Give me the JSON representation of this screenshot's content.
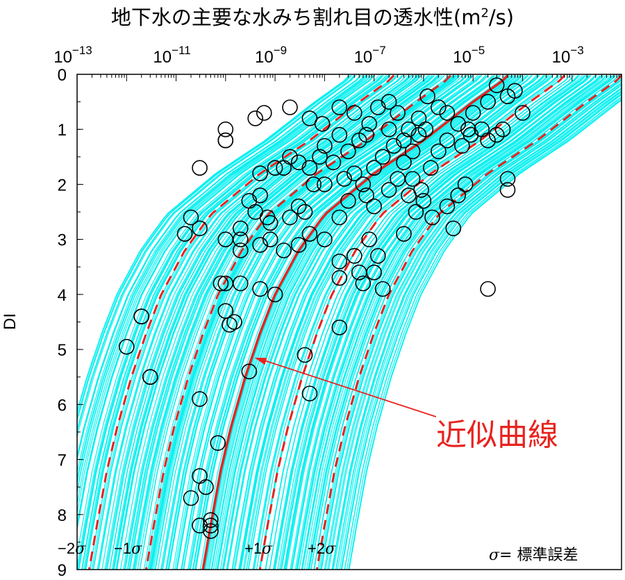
{
  "chart_data": {
    "type": "scatter",
    "title_main": "地下水の主要な水みち割れ目の透水性(m",
    "title_sup": "2",
    "title_end": "/s)",
    "ylabel": "DI",
    "xscale": "log",
    "xlim": [
      1e-13,
      0.01
    ],
    "ylim": [
      0,
      9
    ],
    "y_inverted": true,
    "x_ticks": [
      {
        "base": "10",
        "exp": "−13",
        "value": 1e-13
      },
      {
        "base": "10",
        "exp": "−11",
        "value": 1e-11
      },
      {
        "base": "10",
        "exp": "−9",
        "value": 1e-09
      },
      {
        "base": "10",
        "exp": "−7",
        "value": 1e-07
      },
      {
        "base": "10",
        "exp": "−5",
        "value": 1e-05
      },
      {
        "base": "10",
        "exp": "−3",
        "value": 0.001
      }
    ],
    "y_ticks": [
      "0",
      "1",
      "2",
      "3",
      "4",
      "5",
      "6",
      "7",
      "8",
      "9"
    ],
    "fit_curve": {
      "name": "近似曲線",
      "color": "#e8231f",
      "points": [
        [
          5e-05,
          0.05
        ],
        [
          1e-05,
          0.5
        ],
        [
          1e-06,
          1.2
        ],
        [
          1e-07,
          1.8
        ],
        [
          1e-08,
          2.55
        ],
        [
          3e-09,
          3.2
        ],
        [
          1e-09,
          4.0
        ],
        [
          5e-10,
          4.7
        ],
        [
          2.5e-10,
          5.5
        ],
        [
          1.3e-10,
          6.4
        ],
        [
          8e-11,
          7.2
        ],
        [
          5e-11,
          8.2
        ],
        [
          3.5e-11,
          9.0
        ]
      ]
    },
    "sigma_curves": [
      {
        "label": "−2σ",
        "shift": -2
      },
      {
        "label": "−1σ",
        "shift": -1
      },
      {
        "label": "+1σ",
        "shift": 1
      },
      {
        "label": "+2σ",
        "shift": 2
      }
    ],
    "sigma_decades": 1.15,
    "band_color": "#00f0f0",
    "marker_color": "#000000",
    "points": [
      [
        3e-11,
        1.7
      ],
      [
        6e-10,
        0.7
      ],
      [
        4e-10,
        0.8
      ],
      [
        1e-10,
        1.0
      ],
      [
        1e-10,
        1.2
      ],
      [
        2e-09,
        0.6
      ],
      [
        5e-09,
        0.8
      ],
      [
        8e-09,
        1.5
      ],
      [
        2e-08,
        1.1
      ],
      [
        2e-08,
        0.6
      ],
      [
        5e-08,
        1.2
      ],
      [
        8e-08,
        0.9
      ],
      [
        1.2e-07,
        0.6
      ],
      [
        2e-07,
        0.5
      ],
      [
        3e-07,
        0.7
      ],
      [
        5e-07,
        1.0
      ],
      [
        8e-07,
        0.8
      ],
      [
        1.2e-06,
        0.4
      ],
      [
        2e-06,
        0.6
      ],
      [
        3e-06,
        0.7
      ],
      [
        5e-06,
        0.9
      ],
      [
        8e-06,
        1.0
      ],
      [
        1e-05,
        0.7
      ],
      [
        2e-05,
        0.5
      ],
      [
        3e-05,
        0.2
      ],
      [
        5e-05,
        0.4
      ],
      [
        7e-05,
        0.3
      ],
      [
        0.0001,
        0.7
      ],
      [
        4e-05,
        1.0
      ],
      [
        2e-05,
        1.2
      ],
      [
        1e-08,
        1.3
      ],
      [
        1.5e-08,
        1.6
      ],
      [
        3e-08,
        1.4
      ],
      [
        4e-08,
        1.8
      ],
      [
        6e-08,
        2.0
      ],
      [
        1e-07,
        1.7
      ],
      [
        1.5e-07,
        1.5
      ],
      [
        2.5e-07,
        1.3
      ],
      [
        4e-07,
        1.6
      ],
      [
        6e-07,
        1.9
      ],
      [
        9e-07,
        2.1
      ],
      [
        1.4e-06,
        1.7
      ],
      [
        2e-06,
        1.4
      ],
      [
        3e-06,
        1.2
      ],
      [
        6e-06,
        1.3
      ],
      [
        9e-06,
        1.1
      ],
      [
        1.5e-05,
        1.0
      ],
      [
        3e-05,
        1.1
      ],
      [
        1e-06,
        2.3
      ],
      [
        1.5e-06,
        2.6
      ],
      [
        7e-08,
        2.2
      ],
      [
        1e-07,
        2.4
      ],
      [
        5e-07,
        2.2
      ],
      [
        7e-07,
        2.5
      ],
      [
        4e-06,
        2.8
      ],
      [
        5e-05,
        1.9
      ],
      [
        5e-05,
        2.1
      ],
      [
        3e-08,
        2.3
      ],
      [
        2e-08,
        2.6
      ],
      [
        2e-09,
        1.5
      ],
      [
        3e-09,
        1.6
      ],
      [
        5e-09,
        1.7
      ],
      [
        1e-09,
        1.7
      ],
      [
        5e-10,
        1.8
      ],
      [
        1e-10,
        1.2
      ],
      [
        2e-11,
        2.6
      ],
      [
        1.5e-11,
        2.9
      ],
      [
        3e-11,
        2.8
      ],
      [
        3e-10,
        2.3
      ],
      [
        4e-10,
        2.5
      ],
      [
        5e-10,
        2.2
      ],
      [
        7e-10,
        2.6
      ],
      [
        8e-10,
        2.7
      ],
      [
        2e-10,
        2.8
      ],
      [
        2e-10,
        3.0
      ],
      [
        2e-10,
        3.2
      ],
      [
        1e-10,
        3.0
      ],
      [
        5e-10,
        3.1
      ],
      [
        8e-10,
        3.0
      ],
      [
        2e-09,
        2.6
      ],
      [
        3e-09,
        2.4
      ],
      [
        4e-09,
        2.5
      ],
      [
        1.5e-09,
        3.2
      ],
      [
        3e-09,
        3.1
      ],
      [
        5e-09,
        2.9
      ],
      [
        1e-08,
        3.0
      ],
      [
        2e-08,
        3.4
      ],
      [
        4e-08,
        3.3
      ],
      [
        5e-08,
        3.6
      ],
      [
        8e-08,
        3.0
      ],
      [
        1.2e-07,
        3.3
      ],
      [
        1.5e-07,
        3.9
      ],
      [
        2e-08,
        3.7
      ],
      [
        6e-08,
        3.8
      ],
      [
        1e-07,
        3.6
      ],
      [
        2e-10,
        3.8
      ],
      [
        1e-10,
        3.8
      ],
      [
        8e-11,
        3.8
      ],
      [
        5e-10,
        3.9
      ],
      [
        1e-09,
        4.0
      ],
      [
        1e-10,
        4.3
      ],
      [
        1.5e-10,
        4.5
      ],
      [
        1.2e-10,
        4.55
      ],
      [
        2e-12,
        4.4
      ],
      [
        2e-12,
        4.4
      ],
      [
        1e-12,
        4.95
      ],
      [
        3e-12,
        5.5
      ],
      [
        3e-12,
        5.5
      ],
      [
        3e-10,
        5.4
      ],
      [
        4e-09,
        5.1
      ],
      [
        5e-09,
        5.8
      ],
      [
        2e-08,
        4.6
      ],
      [
        3e-11,
        5.9
      ],
      [
        7e-11,
        6.7
      ],
      [
        3e-11,
        7.3
      ],
      [
        4e-11,
        7.5
      ],
      [
        2e-11,
        7.7
      ],
      [
        5e-11,
        8.1
      ],
      [
        5e-11,
        8.2
      ],
      [
        3e-11,
        8.2
      ],
      [
        5e-11,
        8.3
      ],
      [
        2e-05,
        3.9
      ],
      [
        7e-08,
        1.1
      ],
      [
        2e-07,
        1.0
      ],
      [
        4e-07,
        1.2
      ],
      [
        6e-07,
        1.4
      ],
      [
        8e-07,
        1.1
      ],
      [
        1.1e-06,
        1.0
      ],
      [
        3e-07,
        1.9
      ],
      [
        2e-07,
        2.1
      ],
      [
        1e-08,
        2.0
      ],
      [
        1.5e-09,
        1.7
      ],
      [
        6e-09,
        2.0
      ],
      [
        2.5e-08,
        1.9
      ],
      [
        4e-07,
        2.9
      ],
      [
        3e-06,
        2.4
      ],
      [
        5e-06,
        2.2
      ],
      [
        7e-06,
        2.0
      ],
      [
        4e-08,
        0.7
      ],
      [
        9e-09,
        0.9
      ]
    ]
  }
}
